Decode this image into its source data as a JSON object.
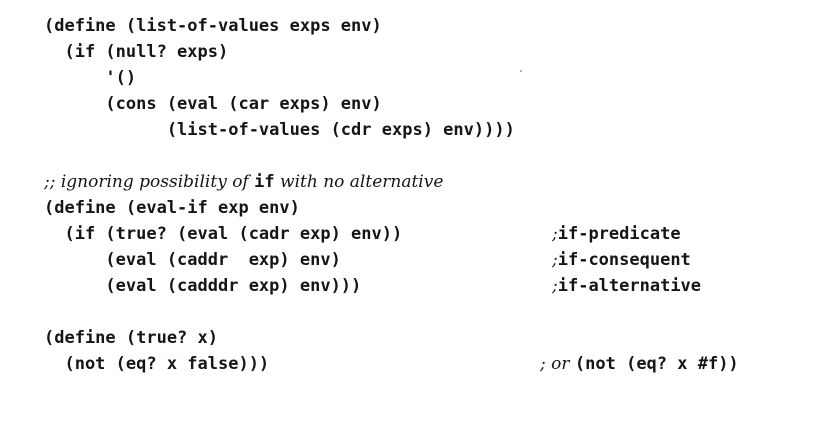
{
  "block1": {
    "line1": "(define (list-of-values exps env)",
    "line2": "  (if (null? exps)",
    "line3": "      '()",
    "line4": "      (cons (eval (car exps) env)",
    "line5": "            (list-of-values (cdr exps) env))))"
  },
  "comment1": {
    "prefix": ";; ignoring possibility of ",
    "keyword": "if",
    "suffix": " with no alternative"
  },
  "block2": {
    "line1": "(define (eval-if exp env)",
    "line2": "  (if (true? (eval (cadr exp) env))",
    "line3": "      (eval (caddr  exp) env)",
    "line4": "      (eval (cadddr exp) env)))"
  },
  "block2_comments": {
    "c1_semi": ";",
    "c1_text": "if-predicate",
    "c2_semi": ";",
    "c2_text": "if-consequent",
    "c3_semi": ";",
    "c3_text": "if-alternative"
  },
  "block3": {
    "line1": "(define (true? x)",
    "line2": "  (not (eq? x false)))"
  },
  "block3_comment": {
    "prefix": "; or ",
    "code": "(not (eq? x #f))"
  }
}
